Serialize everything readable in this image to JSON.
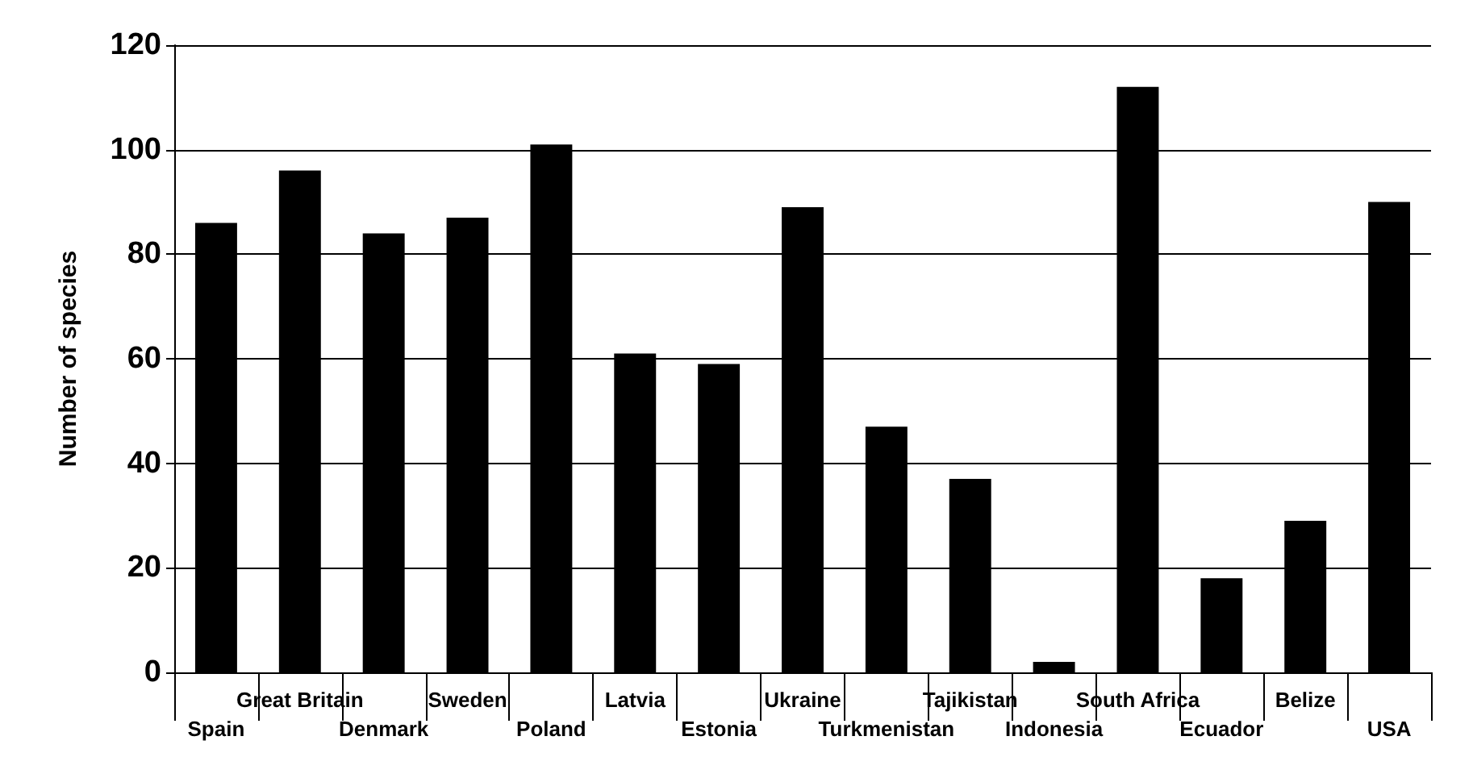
{
  "chart_data": {
    "type": "bar",
    "ylabel": "Number of species",
    "categories": [
      "Spain",
      "Great Britain",
      "Denmark",
      "Sweden",
      "Poland",
      "Latvia",
      "Estonia",
      "Ukraine",
      "Turkmenistan",
      "Tajikistan",
      "Indonesia",
      "South Africa",
      "Ecuador",
      "Belize",
      "USA"
    ],
    "values": [
      86,
      96,
      84,
      87,
      101,
      61,
      59,
      89,
      47,
      37,
      2,
      112,
      18,
      29,
      90
    ],
    "color": "#000000",
    "ylim": [
      0,
      120
    ],
    "yticks": [
      0,
      20,
      40,
      60,
      80,
      100,
      120
    ],
    "grid": "y"
  }
}
